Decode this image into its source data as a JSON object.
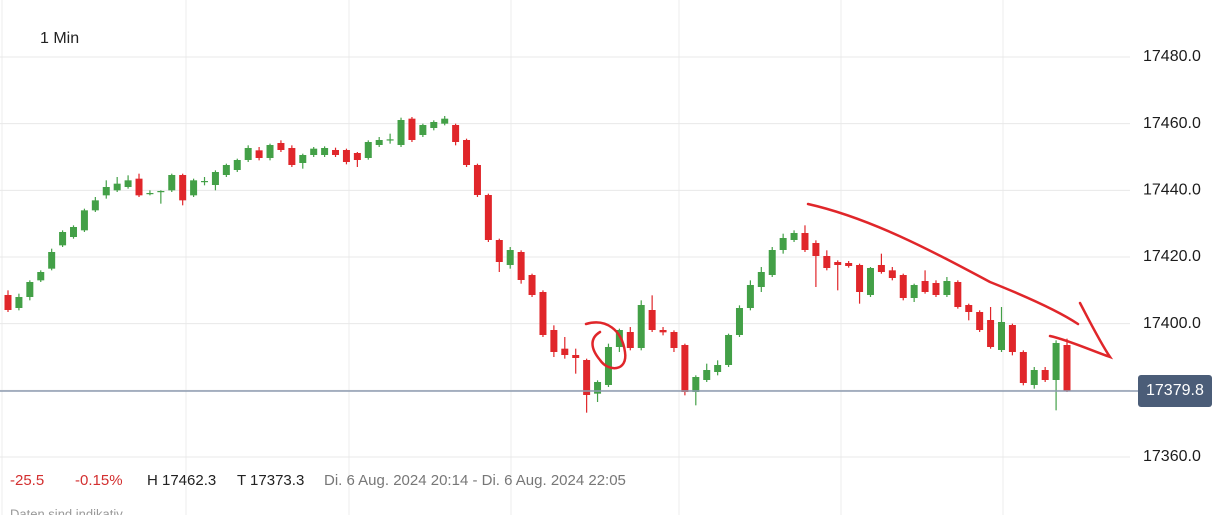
{
  "toolbar": {
    "interval": "1 Min"
  },
  "info_bar": {
    "change": "-25.5",
    "change_pct": "-0.15%",
    "high": "H 17462.3",
    "low": "T 17373.3",
    "range": "Di. 6 Aug. 2024 20:14 - Di. 6 Aug. 2024 22:05"
  },
  "footer": "Daten sind indikativ",
  "chart_data": {
    "type": "candlestick",
    "up_color": "#43a047",
    "down_color": "#e0262a",
    "ylim": [
      17342.6,
      17497.1
    ],
    "yticks": [
      {
        "value": 17360,
        "label": "17360.0"
      },
      {
        "value": 17380,
        "label": "17380.0"
      },
      {
        "value": 17400,
        "label": "17400.0"
      },
      {
        "value": 17420,
        "label": "17420.0"
      },
      {
        "value": 17440,
        "label": "17440.0"
      },
      {
        "value": 17460,
        "label": "17460.0"
      },
      {
        "value": 17480,
        "label": "17480.0"
      }
    ],
    "grid": true,
    "last_price": 17379.8,
    "open": [
      17408.6,
      17404.7,
      17408,
      17413,
      17416.5,
      17423.5,
      17426,
      17428,
      17434,
      17438.5,
      17440,
      17441,
      17443.5,
      17439,
      17439.5,
      17440,
      17444.6,
      17438.5,
      17442.5,
      17441.6,
      17444.6,
      17446.1,
      17449.1,
      17452,
      17449.7,
      17454.2,
      17452.7,
      17448.2,
      17450.6,
      17450.6,
      17452.1,
      17452.1,
      17451.2,
      17449.7,
      17453.6,
      17455,
      17453.6,
      17461.5,
      17456.6,
      17458.7,
      17460,
      17459.6,
      17455.1,
      17447.6,
      17438.6,
      17425.1,
      17417.6,
      17421.5,
      17414.6,
      17409.5,
      17398.1,
      17392.5,
      17390.6,
      17389.1,
      17379,
      17381.6,
      17393,
      17397.5,
      17392.7,
      17404.1,
      17398.1,
      17397.5,
      17393.6,
      17379.5,
      17383.1,
      17385.5,
      17387.6,
      17396.6,
      17404.7,
      17411,
      17414.6,
      17422.1,
      17425.1,
      17427.2,
      17424.2,
      17420.3,
      17418.5,
      17418.2,
      17417.6,
      17408.6,
      17417.6,
      17416,
      17414.6,
      17407.7,
      17412.8,
      17412.2,
      17408.6,
      17412.5,
      17405.6,
      17403.5,
      17401.1,
      17392.1,
      17399.6,
      17391.5,
      17381.6,
      17386.1,
      17383.1,
      17393.6
    ],
    "high": [
      17410,
      17409,
      17413,
      17416,
      17422.5,
      17428,
      17429.5,
      17434.5,
      17438,
      17443,
      17444,
      17444.5,
      17445,
      17440,
      17440,
      17445,
      17445,
      17443.5,
      17444,
      17446,
      17448,
      17449.5,
      17453.5,
      17453,
      17454,
      17455,
      17453.5,
      17451,
      17453,
      17453.2,
      17452.8,
      17452.5,
      17451.5,
      17455,
      17456,
      17457,
      17461.8,
      17462,
      17460,
      17461,
      17462.3,
      17460,
      17455.5,
      17448,
      17439,
      17425.5,
      17423,
      17422,
      17415,
      17410,
      17399.5,
      17396,
      17392.5,
      17389.5,
      17383,
      17394,
      17398.5,
      17399,
      17407,
      17408.5,
      17399,
      17398,
      17394,
      17384.5,
      17388,
      17389,
      17397,
      17405.5,
      17413,
      17417,
      17423,
      17427,
      17428,
      17429.5,
      17425,
      17422,
      17419,
      17418.8,
      17418,
      17417,
      17421,
      17417,
      17415,
      17412,
      17416,
      17413,
      17414,
      17413,
      17406,
      17404,
      17405,
      17405,
      17400,
      17392,
      17387,
      17387,
      17395,
      17395.5
    ],
    "low": [
      17403.5,
      17404,
      17407,
      17412.5,
      17416,
      17423,
      17425.5,
      17427.5,
      17433.5,
      17437.5,
      17439.5,
      17440.5,
      17438,
      17438.5,
      17436,
      17439.5,
      17435.5,
      17438,
      17441.5,
      17440,
      17444,
      17445.5,
      17448.5,
      17449,
      17449,
      17451.5,
      17447,
      17446.5,
      17450,
      17450,
      17450,
      17447.8,
      17447,
      17449.2,
      17453,
      17454,
      17453,
      17454.5,
      17456,
      17458,
      17459.5,
      17453.5,
      17447,
      17438,
      17424.5,
      17415.5,
      17416.5,
      17412,
      17408,
      17396,
      17390,
      17389.5,
      17385,
      17373.3,
      17376.5,
      17381,
      17391.5,
      17392,
      17392,
      17397.5,
      17396.5,
      17391.5,
      17378.5,
      17375.5,
      17382.5,
      17384.5,
      17387,
      17396,
      17404,
      17409.5,
      17414,
      17421,
      17424.5,
      17421.5,
      17411,
      17416,
      17410,
      17416.8,
      17406,
      17408,
      17415,
      17413,
      17407,
      17406.5,
      17409,
      17408,
      17408,
      17404.5,
      17401,
      17397.5,
      17392.5,
      17391.5,
      17390.5,
      17381.5,
      17380.5,
      17382.5,
      17374,
      17379.5
    ],
    "close": [
      17404.1,
      17408,
      17412.5,
      17415.5,
      17421.5,
      17427.5,
      17429,
      17434,
      17437,
      17441,
      17442,
      17443,
      17438.5,
      17439.2,
      17439.8,
      17444.6,
      17437,
      17443,
      17442.8,
      17445.5,
      17447.6,
      17449.1,
      17452.7,
      17449.7,
      17453.6,
      17452.1,
      17447.6,
      17450.6,
      17452.5,
      17452.7,
      17450.6,
      17448.5,
      17449.1,
      17454.5,
      17455.1,
      17455.3,
      17461.1,
      17455.1,
      17459.6,
      17460.5,
      17461.5,
      17454.5,
      17447.6,
      17438.6,
      17425.1,
      17418.5,
      17422.1,
      17413.1,
      17408.6,
      17396.6,
      17391.5,
      17390.6,
      17389.7,
      17378.6,
      17382.5,
      17393,
      17398.1,
      17392.7,
      17405.6,
      17398.1,
      17397.4,
      17392.7,
      17379.5,
      17384,
      17386.1,
      17387.6,
      17396.6,
      17404.7,
      17411.6,
      17415.5,
      17422.1,
      17425.7,
      17427.2,
      17422.1,
      17420.3,
      17416.7,
      17417.6,
      17417.3,
      17409.5,
      17416.7,
      17415.5,
      17413.7,
      17407.7,
      17411.6,
      17409.5,
      17408.6,
      17412.8,
      17405,
      17403.5,
      17398.1,
      17393,
      17400.5,
      17391.5,
      17382.2,
      17386.1,
      17383.1,
      17394.2,
      17379.8
    ]
  }
}
